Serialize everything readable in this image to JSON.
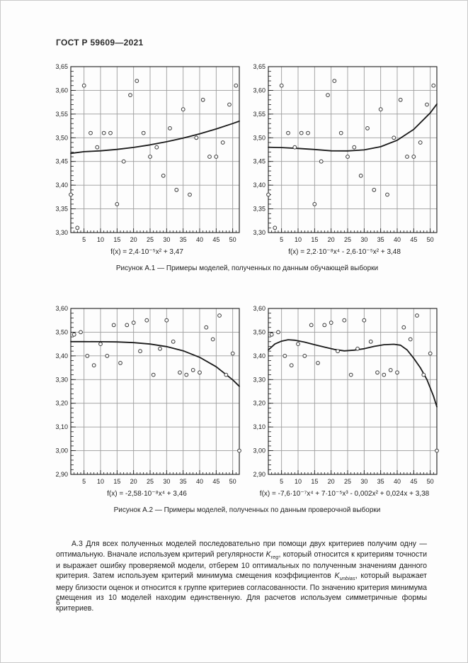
{
  "page": {
    "header": "ГОСТ Р 59609—2021",
    "page_number": "6"
  },
  "figures": [
    {
      "caption": "Рисунок А.1 — Примеры моделей, полученных по данным обучающей выборки"
    },
    {
      "caption": "Рисунок А.2 — Примеры моделей, полученных по данным проверочной выборки"
    }
  ],
  "paragraph": {
    "seg1": "А.3 Для всех полученных моделей последовательно при помощи двух критериев получим одну — оптимальную. Вначале используем критерий регулярности ",
    "k1_base": "K",
    "k1_sub": "reg",
    "seg2": ", который относится к критериям точности и выражает ошибку проверяемой модели, отберем 10 оптимальных по полученным значениям данного критерия. Затем используем критерий минимума смещения коэффициентов ",
    "k2_base": "K",
    "k2_sub": "unbias",
    "seg3": ", который выражает меру близости оценок и относится к группе критериев согласованности. По значению критерия минимума смещения из 10 моделей находим единственную. Для расчетов используем симметричные формы критериев."
  },
  "chart_data": [
    {
      "type": "scatter",
      "title": "",
      "xlabel": "",
      "ylabel": "",
      "xlim": [
        1,
        52
      ],
      "ylim": [
        3.3,
        3.65
      ],
      "xticks": [
        5,
        10,
        15,
        20,
        25,
        30,
        35,
        40,
        45,
        50
      ],
      "yticks": [
        3.3,
        3.35,
        3.4,
        3.45,
        3.5,
        3.55,
        3.6,
        3.65
      ],
      "grid": true,
      "points": [
        [
          1,
          3.38
        ],
        [
          3,
          3.31
        ],
        [
          5,
          3.61
        ],
        [
          7,
          3.51
        ],
        [
          9,
          3.48
        ],
        [
          11,
          3.51
        ],
        [
          13,
          3.51
        ],
        [
          15,
          3.36
        ],
        [
          17,
          3.45
        ],
        [
          19,
          3.59
        ],
        [
          21,
          3.62
        ],
        [
          23,
          3.51
        ],
        [
          25,
          3.46
        ],
        [
          27,
          3.48
        ],
        [
          29,
          3.42
        ],
        [
          31,
          3.52
        ],
        [
          33,
          3.39
        ],
        [
          35,
          3.56
        ],
        [
          37,
          3.38
        ],
        [
          39,
          3.5
        ],
        [
          41,
          3.58
        ],
        [
          43,
          3.46
        ],
        [
          45,
          3.46
        ],
        [
          47,
          3.49
        ],
        [
          49,
          3.57
        ],
        [
          51,
          3.61
        ]
      ],
      "curve_points": [
        [
          1,
          3.467
        ],
        [
          5,
          3.4706
        ],
        [
          10,
          3.4724
        ],
        [
          15,
          3.4754
        ],
        [
          20,
          3.4796
        ],
        [
          25,
          3.485
        ],
        [
          30,
          3.4916
        ],
        [
          35,
          3.4994
        ],
        [
          40,
          3.5084
        ],
        [
          45,
          3.5186
        ],
        [
          50,
          3.53
        ],
        [
          52,
          3.535
        ]
      ],
      "formula": "f(x) = 2,4·10⁻⁵x² + 3,47"
    },
    {
      "type": "scatter",
      "title": "",
      "xlabel": "",
      "ylabel": "",
      "xlim": [
        1,
        52
      ],
      "ylim": [
        3.3,
        3.65
      ],
      "xticks": [
        5,
        10,
        15,
        20,
        25,
        30,
        35,
        40,
        45,
        50
      ],
      "yticks": [
        3.3,
        3.35,
        3.4,
        3.45,
        3.5,
        3.55,
        3.6,
        3.65
      ],
      "grid": true,
      "points": [
        [
          1,
          3.38
        ],
        [
          3,
          3.31
        ],
        [
          5,
          3.61
        ],
        [
          7,
          3.51
        ],
        [
          9,
          3.48
        ],
        [
          11,
          3.51
        ],
        [
          13,
          3.51
        ],
        [
          15,
          3.36
        ],
        [
          17,
          3.45
        ],
        [
          19,
          3.59
        ],
        [
          21,
          3.62
        ],
        [
          23,
          3.51
        ],
        [
          25,
          3.46
        ],
        [
          27,
          3.48
        ],
        [
          29,
          3.42
        ],
        [
          31,
          3.52
        ],
        [
          33,
          3.39
        ],
        [
          35,
          3.56
        ],
        [
          37,
          3.38
        ],
        [
          39,
          3.5
        ],
        [
          41,
          3.58
        ],
        [
          43,
          3.46
        ],
        [
          45,
          3.46
        ],
        [
          47,
          3.49
        ],
        [
          49,
          3.57
        ],
        [
          51,
          3.61
        ]
      ],
      "curve_points": [
        [
          1,
          3.48
        ],
        [
          5,
          3.4794
        ],
        [
          10,
          3.4776
        ],
        [
          15,
          3.4753
        ],
        [
          20,
          3.4725
        ],
        [
          25,
          3.4723
        ],
        [
          30,
          3.4744
        ],
        [
          35,
          3.4812
        ],
        [
          40,
          3.4947
        ],
        [
          45,
          3.5176
        ],
        [
          50,
          3.5525
        ],
        [
          52,
          3.571
        ]
      ],
      "formula": "f(x) = 2,2·10⁻⁸x⁴ - 2,6·10⁻⁵x² + 3,48"
    },
    {
      "type": "scatter",
      "title": "",
      "xlabel": "",
      "ylabel": "",
      "xlim": [
        1,
        52
      ],
      "ylim": [
        2.9,
        3.6
      ],
      "xticks": [
        5,
        10,
        15,
        20,
        25,
        30,
        35,
        40,
        45,
        50
      ],
      "yticks": [
        2.9,
        3.0,
        3.1,
        3.2,
        3.3,
        3.4,
        3.5,
        3.6
      ],
      "grid": true,
      "points": [
        [
          2,
          3.49
        ],
        [
          4,
          3.5
        ],
        [
          6,
          3.4
        ],
        [
          8,
          3.36
        ],
        [
          10,
          3.45
        ],
        [
          12,
          3.4
        ],
        [
          14,
          3.53
        ],
        [
          16,
          3.37
        ],
        [
          18,
          3.53
        ],
        [
          20,
          3.54
        ],
        [
          22,
          3.42
        ],
        [
          24,
          3.55
        ],
        [
          26,
          3.32
        ],
        [
          28,
          3.43
        ],
        [
          30,
          3.55
        ],
        [
          32,
          3.46
        ],
        [
          34,
          3.33
        ],
        [
          36,
          3.32
        ],
        [
          38,
          3.34
        ],
        [
          40,
          3.33
        ],
        [
          42,
          3.52
        ],
        [
          44,
          3.47
        ],
        [
          46,
          3.57
        ],
        [
          48,
          3.32
        ],
        [
          50,
          3.41
        ],
        [
          52,
          3.0
        ]
      ],
      "curve_points": [
        [
          1,
          3.46
        ],
        [
          5,
          3.46
        ],
        [
          10,
          3.4597
        ],
        [
          15,
          3.4587
        ],
        [
          20,
          3.4559
        ],
        [
          25,
          3.4499
        ],
        [
          30,
          3.4391
        ],
        [
          35,
          3.4213
        ],
        [
          40,
          3.3939
        ],
        [
          45,
          3.3542
        ],
        [
          50,
          3.2988
        ],
        [
          52,
          3.2714
        ]
      ],
      "formula": "f(x) = -2,58·10⁻⁸x⁴ + 3,46"
    },
    {
      "type": "scatter",
      "title": "",
      "xlabel": "",
      "ylabel": "",
      "xlim": [
        1,
        52
      ],
      "ylim": [
        2.9,
        3.6
      ],
      "xticks": [
        5,
        10,
        15,
        20,
        25,
        30,
        35,
        40,
        45,
        50
      ],
      "yticks": [
        2.9,
        3.0,
        3.1,
        3.2,
        3.3,
        3.4,
        3.5,
        3.6
      ],
      "grid": true,
      "points": [
        [
          2,
          3.49
        ],
        [
          4,
          3.5
        ],
        [
          6,
          3.4
        ],
        [
          8,
          3.36
        ],
        [
          10,
          3.45
        ],
        [
          12,
          3.4
        ],
        [
          14,
          3.53
        ],
        [
          16,
          3.37
        ],
        [
          18,
          3.53
        ],
        [
          20,
          3.54
        ],
        [
          22,
          3.42
        ],
        [
          24,
          3.55
        ],
        [
          26,
          3.32
        ],
        [
          28,
          3.43
        ],
        [
          30,
          3.55
        ],
        [
          32,
          3.46
        ],
        [
          34,
          3.33
        ],
        [
          36,
          3.32
        ],
        [
          38,
          3.34
        ],
        [
          40,
          3.33
        ],
        [
          42,
          3.52
        ],
        [
          44,
          3.47
        ],
        [
          46,
          3.57
        ],
        [
          48,
          3.32
        ],
        [
          50,
          3.41
        ],
        [
          52,
          3.0
        ]
      ],
      "curve_points": [
        [
          1,
          3.425
        ],
        [
          3,
          3.45
        ],
        [
          5,
          3.462
        ],
        [
          7,
          3.468
        ],
        [
          9,
          3.466
        ],
        [
          12,
          3.458
        ],
        [
          15,
          3.447
        ],
        [
          18,
          3.437
        ],
        [
          21,
          3.427
        ],
        [
          24,
          3.421
        ],
        [
          27,
          3.424
        ],
        [
          30,
          3.43
        ],
        [
          33,
          3.44
        ],
        [
          36,
          3.447
        ],
        [
          39,
          3.449
        ],
        [
          41,
          3.445
        ],
        [
          43,
          3.425
        ],
        [
          45,
          3.39
        ],
        [
          47,
          3.35
        ],
        [
          49,
          3.3
        ],
        [
          51,
          3.23
        ],
        [
          52,
          3.185
        ]
      ],
      "formula": "f(x) = -7,6·10⁻⁷x⁴ + 7·10⁻⁵x³ - 0,002x² + 0,024x + 3,38"
    }
  ]
}
